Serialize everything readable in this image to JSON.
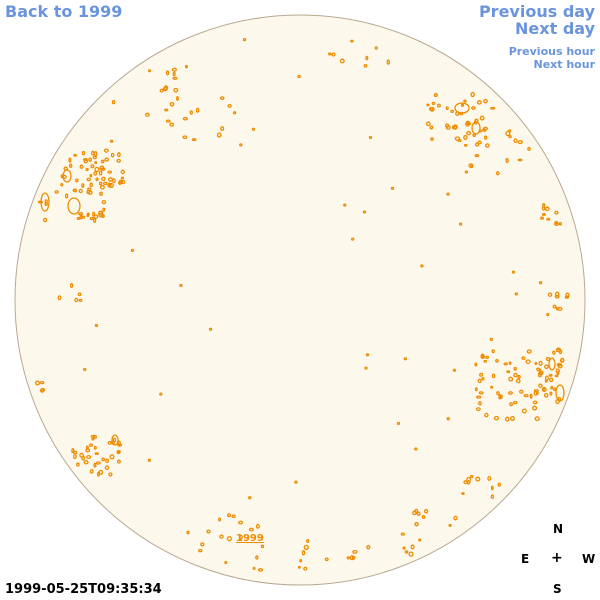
{
  "nav": {
    "back_label": "Back to 1999",
    "previous_day": "Previous day",
    "next_day": "Next day",
    "previous_hour": "Previous hour",
    "next_hour": "Next hour"
  },
  "timestamp": "1999-05-25T09:35:34",
  "year_link": "1999",
  "compass": {
    "north": "N",
    "east": "E",
    "center": "+",
    "west": "W",
    "south": "S"
  },
  "colors": {
    "disk_fill": "#fdf8ec",
    "disk_edge": "#b8a890",
    "features": "#ef8c00",
    "nav_link": "#6a95dc"
  }
}
